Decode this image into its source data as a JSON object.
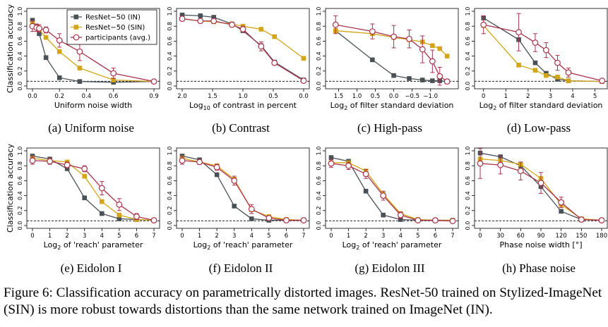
{
  "figure": {
    "caption": "Figure 6: Classification accuracy on parametrically distorted images. ResNet-50 trained on Stylized-ImageNet (SIN) is more robust towards distortions than the same network trained on ImageNet (IN).",
    "legend": [
      "ResNet−50 (IN)",
      "ResNet−50 (SIN)",
      "participants (avg.)"
    ],
    "ylabel": "Classification accuracy",
    "colors": {
      "IN": "#4a5156",
      "SIN": "#d4a516",
      "participants": "#a8324b",
      "chance": "#000000"
    },
    "chance_level": 0.063
  },
  "chart_data": [
    {
      "type": "line",
      "caption": "(a) Uniform noise",
      "xlabel": "Uniform noise width",
      "xlim": [
        0,
        0.9
      ],
      "ylim": [
        0,
        1
      ],
      "xticks": [
        "0.0",
        "0.2",
        "0.4",
        "0.6",
        "0.9"
      ],
      "yticks": [
        "0.0",
        "0.2",
        "0.4",
        "0.6",
        "0.8",
        "1.0"
      ],
      "x": [
        0.0,
        0.03,
        0.05,
        0.1,
        0.2,
        0.35,
        0.6,
        0.9
      ],
      "series": [
        {
          "name": "ResNet−50 (IN)",
          "values": [
            0.88,
            0.79,
            0.7,
            0.38,
            0.11,
            0.06,
            0.05,
            0.06
          ]
        },
        {
          "name": "ResNet−50 (SIN)",
          "values": [
            0.84,
            0.79,
            0.75,
            0.65,
            0.46,
            0.24,
            0.08,
            0.06
          ]
        },
        {
          "name": "participants (avg.)",
          "values": [
            0.8,
            0.78,
            0.77,
            0.75,
            0.61,
            0.46,
            0.17,
            0.06
          ],
          "err": [
            0.07,
            0.05,
            0.05,
            0.04,
            0.09,
            0.12,
            0.07,
            0.02
          ]
        }
      ]
    },
    {
      "type": "line",
      "caption": "(b) Contrast",
      "xlabel": "Log10 of contrast in percent",
      "xlim": [
        2,
        0
      ],
      "ylim": [
        0,
        1
      ],
      "xticks": [
        "2.0",
        "1.5",
        "1.0",
        "0.5",
        "0.0"
      ],
      "yticks": [
        "0.0",
        "0.2",
        "0.4",
        "0.6",
        "0.8",
        "1.0"
      ],
      "x": [
        2.0,
        1.7,
        1.48,
        1.18,
        1.0,
        0.7,
        0.48,
        0.0
      ],
      "series": [
        {
          "name": "ResNet−50 (IN)",
          "values": [
            0.95,
            0.94,
            0.92,
            0.83,
            0.74,
            0.54,
            0.32,
            0.08
          ]
        },
        {
          "name": "ResNet−50 (SIN)",
          "values": [
            0.9,
            0.87,
            0.86,
            0.83,
            0.8,
            0.76,
            0.66,
            0.37
          ]
        },
        {
          "name": "participants (avg.)",
          "values": [
            0.9,
            0.87,
            0.87,
            0.82,
            0.76,
            0.53,
            0.31,
            0.07
          ],
          "err": [
            0.02,
            0.02,
            0.02,
            0.03,
            0.04,
            0.06,
            0.03,
            0.02
          ]
        }
      ]
    },
    {
      "type": "line",
      "caption": "(c) High-pass",
      "xlabel": "Log2 of filter standard deviation",
      "xlim": [
        1.7,
        -1.6
      ],
      "ylim": [
        0,
        1
      ],
      "xticks": [
        "1.5",
        "1.0",
        "0.5",
        "0.0",
        "−0.5",
        "−1.0"
      ],
      "yticks": [
        "0.0",
        "0.2",
        "0.4",
        "0.6",
        "0.8",
        "1.0"
      ],
      "x": [
        1.58,
        0.58,
        0.0,
        -0.42,
        -0.78,
        -1.05,
        -1.25,
        -1.45
      ],
      "series": [
        {
          "name": "ResNet−50 (IN)",
          "values": [
            0.74,
            0.35,
            0.14,
            0.1,
            0.08,
            0.07,
            0.07,
            0.06
          ]
        },
        {
          "name": "ResNet−50 (SIN)",
          "values": [
            0.74,
            0.7,
            0.65,
            0.62,
            0.59,
            0.54,
            0.5,
            0.4
          ]
        },
        {
          "name": "participants (avg.)",
          "values": [
            0.82,
            0.73,
            0.66,
            0.63,
            0.49,
            0.33,
            0.13,
            0.06
          ],
          "err": [
            0.12,
            0.1,
            0.15,
            0.12,
            0.18,
            0.15,
            0.12,
            0.03
          ]
        }
      ]
    },
    {
      "type": "line",
      "caption": "(d) Low-pass",
      "xlabel": "Log2 of filter standard deviation",
      "xlim": [
        -0.15,
        5.3
      ],
      "ylim": [
        0,
        1
      ],
      "xticks": [
        "0",
        "1",
        "2",
        "3",
        "4",
        "5"
      ],
      "yticks": [
        "0.0",
        "0.2",
        "0.4",
        "0.6",
        "0.8",
        "1.0"
      ],
      "x": [
        0.0,
        1.58,
        2.32,
        2.81,
        3.32,
        3.81,
        5.32
      ],
      "series": [
        {
          "name": "ResNet−50 (IN)",
          "values": [
            0.91,
            0.62,
            0.31,
            0.17,
            0.09,
            0.07,
            0.06
          ]
        },
        {
          "name": "ResNet−50 (SIN)",
          "values": [
            0.81,
            0.28,
            0.21,
            0.14,
            0.12,
            0.07,
            0.06
          ]
        },
        {
          "name": "participants (avg.)",
          "values": [
            0.82,
            0.72,
            0.58,
            0.48,
            0.31,
            0.18,
            0.07
          ],
          "err": [
            0.12,
            0.25,
            0.12,
            0.1,
            0.1,
            0.06,
            0.02
          ]
        }
      ]
    },
    {
      "type": "line",
      "caption": "(e) Eidolon I",
      "xlabel": "Log2 of 'reach' parameter",
      "xlim": [
        0,
        7
      ],
      "ylim": [
        0,
        1
      ],
      "xticks": [
        "0",
        "1",
        "2",
        "3",
        "4",
        "5",
        "6",
        "7"
      ],
      "yticks": [
        "0.0",
        "0.2",
        "0.4",
        "0.6",
        "0.8",
        "1.0"
      ],
      "x": [
        0,
        1,
        2,
        3,
        4,
        5,
        6,
        7
      ],
      "series": [
        {
          "name": "ResNet−50 (IN)",
          "values": [
            0.93,
            0.89,
            0.76,
            0.37,
            0.16,
            0.09,
            0.08,
            0.07
          ]
        },
        {
          "name": "ResNet−50 (SIN)",
          "values": [
            0.9,
            0.87,
            0.85,
            0.66,
            0.32,
            0.14,
            0.08,
            0.07
          ]
        },
        {
          "name": "participants (avg.)",
          "values": [
            0.87,
            0.86,
            0.81,
            0.76,
            0.5,
            0.28,
            0.12,
            0.07
          ],
          "err": [
            0.05,
            0.04,
            0.04,
            0.04,
            0.09,
            0.08,
            0.04,
            0.02
          ]
        }
      ]
    },
    {
      "type": "line",
      "caption": "(f) Eidolon II",
      "xlabel": "Log2 of 'reach' parameter",
      "xlim": [
        0,
        7
      ],
      "ylim": [
        0,
        1
      ],
      "xticks": [
        "0",
        "1",
        "2",
        "3",
        "4",
        "5",
        "6",
        "7"
      ],
      "yticks": [
        "0.0",
        "0.2",
        "0.4",
        "0.6",
        "0.8",
        "1.0"
      ],
      "x": [
        0,
        1,
        2,
        3,
        4,
        5,
        6,
        7
      ],
      "series": [
        {
          "name": "ResNet−50 (IN)",
          "values": [
            0.93,
            0.88,
            0.68,
            0.26,
            0.09,
            0.07,
            0.07,
            0.07
          ]
        },
        {
          "name": "ResNet−50 (SIN)",
          "values": [
            0.9,
            0.85,
            0.8,
            0.62,
            0.21,
            0.12,
            0.08,
            0.07
          ]
        },
        {
          "name": "participants (avg.)",
          "values": [
            0.87,
            0.85,
            0.78,
            0.6,
            0.22,
            0.1,
            0.07,
            0.07
          ],
          "err": [
            0.05,
            0.03,
            0.04,
            0.06,
            0.06,
            0.03,
            0.02,
            0.02
          ]
        }
      ]
    },
    {
      "type": "line",
      "caption": "(g) Eidolon III",
      "xlabel": "Log2 of 'reach' parameter",
      "xlim": [
        0,
        7
      ],
      "ylim": [
        0,
        1
      ],
      "xticks": [
        "0",
        "1",
        "2",
        "3",
        "4",
        "5",
        "6",
        "7"
      ],
      "yticks": [
        "0.0",
        "0.2",
        "0.4",
        "0.6",
        "0.8",
        "1.0"
      ],
      "x": [
        0,
        1,
        2,
        3,
        4,
        5,
        6,
        7
      ],
      "series": [
        {
          "name": "ResNet−50 (IN)",
          "values": [
            0.91,
            0.86,
            0.46,
            0.14,
            0.08,
            0.07,
            0.07,
            0.07
          ]
        },
        {
          "name": "ResNet−50 (SIN)",
          "values": [
            0.84,
            0.84,
            0.73,
            0.42,
            0.16,
            0.08,
            0.07,
            0.07
          ]
        },
        {
          "name": "participants (avg.)",
          "values": [
            0.83,
            0.8,
            0.69,
            0.4,
            0.14,
            0.07,
            0.07,
            0.06
          ],
          "err": [
            0.05,
            0.05,
            0.06,
            0.06,
            0.04,
            0.02,
            0.02,
            0.02
          ]
        }
      ]
    },
    {
      "type": "line",
      "caption": "(h) Phase noise",
      "xlabel": "Phase noise width [°]",
      "xlim": [
        0,
        180
      ],
      "ylim": [
        0,
        1
      ],
      "xticks": [
        "0",
        "30",
        "60",
        "90",
        "120",
        "150",
        "180"
      ],
      "yticks": [
        "0.0",
        "0.2",
        "0.4",
        "0.6",
        "0.8",
        "1.0"
      ],
      "x": [
        0,
        30,
        60,
        90,
        120,
        150,
        180
      ],
      "series": [
        {
          "name": "ResNet−50 (IN)",
          "values": [
            0.97,
            0.92,
            0.8,
            0.52,
            0.19,
            0.08,
            0.07
          ]
        },
        {
          "name": "ResNet−50 (SIN)",
          "values": [
            0.89,
            0.87,
            0.82,
            0.63,
            0.28,
            0.09,
            0.07
          ]
        },
        {
          "name": "participants (avg.)",
          "values": [
            0.83,
            0.81,
            0.73,
            0.57,
            0.31,
            0.08,
            0.07
          ],
          "err": [
            0.2,
            0.12,
            0.12,
            0.14,
            0.07,
            0.03,
            0.02
          ]
        }
      ]
    }
  ]
}
